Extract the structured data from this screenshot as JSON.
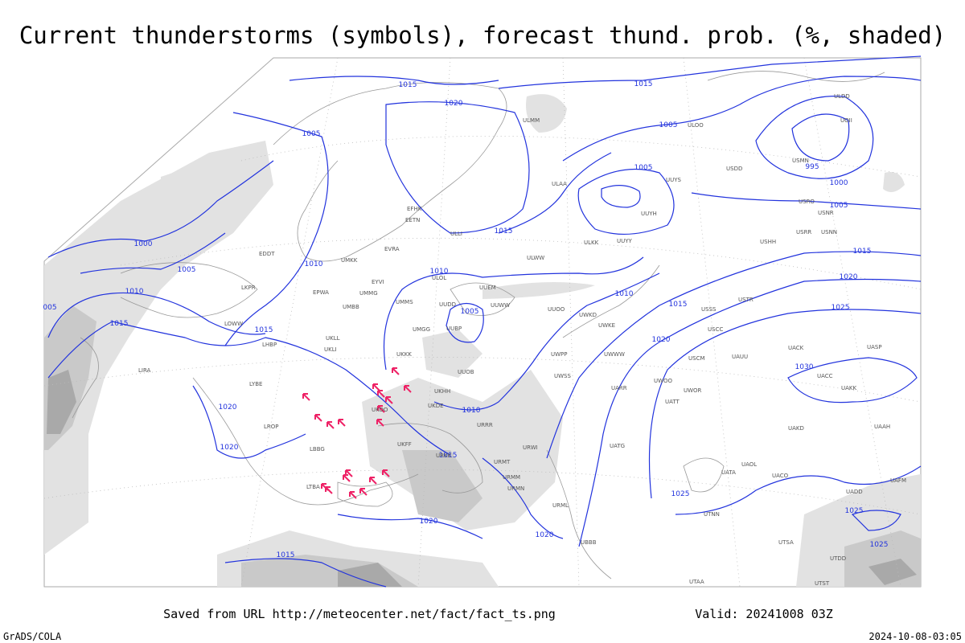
{
  "title": "Current thunderstorms (symbols), forecast thund. prob. (%, shaded)",
  "footer": {
    "saved": "Saved from URL http://meteocenter.net/fact/fact_ts.png",
    "valid": "Valid: 20241008 03Z",
    "credit": "GrADS/COLA",
    "timestamp": "2024-10-08-03:05"
  },
  "isobar_labels": [
    "1015",
    "1020",
    "1005",
    "1015",
    "1005",
    "1005",
    "995",
    "1000",
    "1005",
    "1015",
    "1000",
    "1005",
    "1010",
    "1010",
    "1010",
    "1005",
    "1015",
    "1015",
    "1010",
    "1015",
    "1015",
    "1020",
    "1025",
    "1020",
    "1030",
    "1010",
    "1020",
    "1020",
    "1015",
    "1025",
    "1020",
    "1020",
    "1015",
    "1025",
    "1025",
    "005"
  ],
  "stations": [
    "ULMM",
    "ULAA",
    "ULOO",
    "USDD",
    "ULWW",
    "ULLI",
    "ULOL",
    "UUEM",
    "UUWW",
    "UUOO",
    "UUDD",
    "UMMS",
    "UMGG",
    "UUBP",
    "UUOB",
    "UKKK",
    "UKHH",
    "UKDE",
    "URRR",
    "URWI",
    "URMT",
    "URMM",
    "URMN",
    "URML",
    "UWPP",
    "UWSS",
    "UWKD",
    "UWKE",
    "UWWW",
    "UARR",
    "UWOO",
    "UWOR",
    "UATT",
    "UATG",
    "UATA",
    "UAOL",
    "UACO",
    "UAKD",
    "UACK",
    "UASP",
    "UACC",
    "UAKK",
    "UAAH",
    "UADD",
    "UAFM",
    "UTNN",
    "UTSA",
    "UTST",
    "UTDD",
    "UTAA",
    "UBBB",
    "URKK",
    "UUYH",
    "UUYY",
    "ULKK",
    "USSS",
    "USCC",
    "USCM",
    "UAUU",
    "USTR",
    "USHH",
    "USRR",
    "USNN",
    "USRO",
    "USNR",
    "ULDD",
    "UOII",
    "USMN",
    "UUYS",
    "EVRA",
    "UMKK",
    "EYVI",
    "UMMG",
    "EPWA",
    "UMBB",
    "UKLL",
    "UKLI",
    "UKOO",
    "UKFF",
    "LBBG",
    "LROP",
    "LYBE",
    "LIRA",
    "LOWW",
    "LHBP",
    "EDDT",
    "LKPR",
    "LTBA",
    "EFHK",
    "EETN"
  ]
}
